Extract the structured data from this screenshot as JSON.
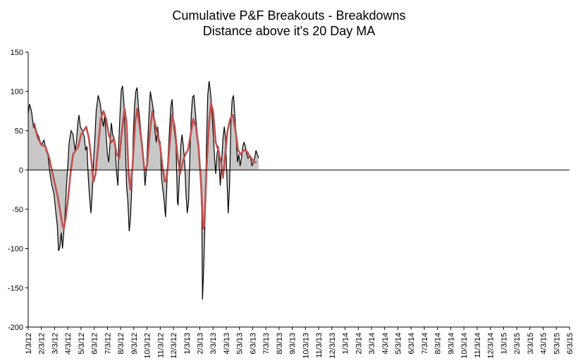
{
  "chart_data": {
    "type": "area",
    "title": "Cumulative P&F Breakouts - Breakdowns",
    "subtitle": "Distance above it's 20 Day MA",
    "xlabel": "",
    "ylabel": "",
    "ylim": [
      -200,
      150
    ],
    "y_ticks": [
      150,
      100,
      50,
      0,
      -50,
      -100,
      -150,
      -200
    ],
    "x_tick_labels": [
      "1/3/12",
      "2/3/12",
      "3/3/12",
      "4/3/12",
      "5/3/12",
      "6/3/12",
      "7/3/12",
      "8/3/12",
      "9/3/12",
      "10/3/12",
      "11/3/12",
      "12/3/12",
      "1/3/13",
      "2/3/13",
      "3/3/13",
      "4/3/13",
      "5/3/13",
      "6/3/13",
      "7/3/13",
      "8/3/13",
      "9/3/13",
      "10/3/13",
      "11/3/13",
      "12/3/13",
      "1/3/14",
      "2/3/14",
      "3/3/14",
      "4/3/14",
      "5/3/14",
      "6/3/14",
      "7/3/14",
      "8/3/14",
      "9/3/14",
      "10/3/14",
      "11/3/14",
      "12/3/14",
      "1/3/15",
      "2/3/15",
      "3/3/15",
      "4/3/15",
      "5/3/15",
      "6/3/15"
    ],
    "grid": false,
    "legend": "none",
    "series": [
      {
        "color": "#000000",
        "fill": "#c8c8c8",
        "style": "area",
        "points": [
          [
            0.0,
            72
          ],
          [
            0.1,
            84
          ],
          [
            0.25,
            75
          ],
          [
            0.4,
            55
          ],
          [
            0.6,
            50
          ],
          [
            0.8,
            42
          ],
          [
            1.0,
            32
          ],
          [
            1.2,
            38
          ],
          [
            1.35,
            25
          ],
          [
            1.5,
            18
          ],
          [
            1.65,
            -5
          ],
          [
            1.8,
            -20
          ],
          [
            1.95,
            -30
          ],
          [
            2.1,
            -55
          ],
          [
            2.2,
            -70
          ],
          [
            2.3,
            -103
          ],
          [
            2.4,
            -98
          ],
          [
            2.5,
            -80
          ],
          [
            2.6,
            -100
          ],
          [
            2.7,
            -78
          ],
          [
            2.8,
            -55
          ],
          [
            2.9,
            -20
          ],
          [
            3.0,
            5
          ],
          [
            3.1,
            35
          ],
          [
            3.25,
            50
          ],
          [
            3.4,
            45
          ],
          [
            3.55,
            25
          ],
          [
            3.65,
            35
          ],
          [
            3.75,
            58
          ],
          [
            3.85,
            70
          ],
          [
            3.95,
            55
          ],
          [
            4.1,
            50
          ],
          [
            4.25,
            42
          ],
          [
            4.35,
            25
          ],
          [
            4.45,
            30
          ],
          [
            4.55,
            -10
          ],
          [
            4.65,
            -35
          ],
          [
            4.75,
            -55
          ],
          [
            4.85,
            -30
          ],
          [
            4.95,
            10
          ],
          [
            5.05,
            40
          ],
          [
            5.15,
            75
          ],
          [
            5.3,
            95
          ],
          [
            5.45,
            85
          ],
          [
            5.6,
            65
          ],
          [
            5.7,
            55
          ],
          [
            5.8,
            70
          ],
          [
            5.9,
            45
          ],
          [
            6.0,
            20
          ],
          [
            6.1,
            10
          ],
          [
            6.2,
            35
          ],
          [
            6.3,
            60
          ],
          [
            6.4,
            45
          ],
          [
            6.5,
            40
          ],
          [
            6.6,
            25
          ],
          [
            6.7,
            -5
          ],
          [
            6.8,
            -20
          ],
          [
            6.85,
            30
          ],
          [
            6.95,
            70
          ],
          [
            7.05,
            102
          ],
          [
            7.15,
            107
          ],
          [
            7.25,
            85
          ],
          [
            7.35,
            40
          ],
          [
            7.45,
            -20
          ],
          [
            7.55,
            -40
          ],
          [
            7.65,
            -78
          ],
          [
            7.75,
            -60
          ],
          [
            7.85,
            -20
          ],
          [
            7.95,
            40
          ],
          [
            8.05,
            80
          ],
          [
            8.15,
            100
          ],
          [
            8.25,
            105
          ],
          [
            8.35,
            80
          ],
          [
            8.5,
            55
          ],
          [
            8.65,
            30
          ],
          [
            8.75,
            10
          ],
          [
            8.85,
            -20
          ],
          [
            8.95,
            0
          ],
          [
            9.05,
            35
          ],
          [
            9.15,
            70
          ],
          [
            9.25,
            100
          ],
          [
            9.35,
            90
          ],
          [
            9.5,
            75
          ],
          [
            9.6,
            50
          ],
          [
            9.7,
            35
          ],
          [
            9.8,
            55
          ],
          [
            9.9,
            40
          ],
          [
            10.0,
            35
          ],
          [
            10.1,
            -10
          ],
          [
            10.2,
            -25
          ],
          [
            10.3,
            -40
          ],
          [
            10.4,
            -60
          ],
          [
            10.5,
            -20
          ],
          [
            10.6,
            20
          ],
          [
            10.7,
            50
          ],
          [
            10.8,
            80
          ],
          [
            10.9,
            90
          ],
          [
            11.0,
            60
          ],
          [
            11.1,
            45
          ],
          [
            11.2,
            30
          ],
          [
            11.3,
            -40
          ],
          [
            11.35,
            -45
          ],
          [
            11.45,
            -10
          ],
          [
            11.55,
            30
          ],
          [
            11.65,
            45
          ],
          [
            11.75,
            30
          ],
          [
            11.85,
            10
          ],
          [
            11.95,
            -30
          ],
          [
            12.05,
            -55
          ],
          [
            12.15,
            -40
          ],
          [
            12.25,
            20
          ],
          [
            12.35,
            70
          ],
          [
            12.45,
            93
          ],
          [
            12.55,
            95
          ],
          [
            12.65,
            75
          ],
          [
            12.75,
            55
          ],
          [
            12.85,
            40
          ],
          [
            12.95,
            20
          ],
          [
            13.05,
            -10
          ],
          [
            13.15,
            -55
          ],
          [
            13.2,
            -165
          ],
          [
            13.3,
            -120
          ],
          [
            13.4,
            -60
          ],
          [
            13.5,
            30
          ],
          [
            13.6,
            95
          ],
          [
            13.7,
            113
          ],
          [
            13.8,
            100
          ],
          [
            13.9,
            80
          ],
          [
            14.0,
            50
          ],
          [
            14.1,
            20
          ],
          [
            14.2,
            -5
          ],
          [
            14.3,
            20
          ],
          [
            14.4,
            30
          ],
          [
            14.5,
            -5
          ],
          [
            14.55,
            -20
          ],
          [
            14.65,
            10
          ],
          [
            14.75,
            40
          ],
          [
            14.85,
            55
          ],
          [
            14.95,
            40
          ],
          [
            15.05,
            -10
          ],
          [
            15.15,
            -55
          ],
          [
            15.25,
            -20
          ],
          [
            15.35,
            60
          ],
          [
            15.45,
            90
          ],
          [
            15.55,
            95
          ],
          [
            15.65,
            70
          ],
          [
            15.75,
            40
          ],
          [
            15.85,
            10
          ],
          [
            15.95,
            20
          ],
          [
            16.05,
            5
          ],
          [
            16.15,
            15
          ],
          [
            16.25,
            30
          ],
          [
            16.35,
            35
          ],
          [
            16.45,
            30
          ],
          [
            16.55,
            20
          ],
          [
            16.65,
            15
          ],
          [
            16.75,
            18
          ],
          [
            16.85,
            15
          ],
          [
            16.95,
            5
          ],
          [
            17.05,
            10
          ],
          [
            17.15,
            15
          ],
          [
            17.25,
            25
          ],
          [
            17.35,
            20
          ],
          [
            17.45,
            15
          ]
        ]
      },
      {
        "color": "#c0504d",
        "style": "line",
        "points": [
          [
            0.45,
            60
          ],
          [
            0.7,
            42
          ],
          [
            1.0,
            32
          ],
          [
            1.3,
            30
          ],
          [
            1.6,
            15
          ],
          [
            1.85,
            -5
          ],
          [
            2.05,
            -20
          ],
          [
            2.25,
            -35
          ],
          [
            2.45,
            -55
          ],
          [
            2.6,
            -70
          ],
          [
            2.7,
            -75
          ],
          [
            2.85,
            -60
          ],
          [
            3.0,
            -40
          ],
          [
            3.2,
            -5
          ],
          [
            3.4,
            20
          ],
          [
            3.6,
            25
          ],
          [
            3.8,
            30
          ],
          [
            4.0,
            45
          ],
          [
            4.2,
            50
          ],
          [
            4.4,
            55
          ],
          [
            4.6,
            40
          ],
          [
            4.8,
            10
          ],
          [
            4.95,
            -15
          ],
          [
            5.1,
            -5
          ],
          [
            5.3,
            30
          ],
          [
            5.5,
            65
          ],
          [
            5.7,
            75
          ],
          [
            5.9,
            65
          ],
          [
            6.1,
            45
          ],
          [
            6.3,
            35
          ],
          [
            6.5,
            40
          ],
          [
            6.7,
            20
          ],
          [
            6.9,
            15
          ],
          [
            7.1,
            50
          ],
          [
            7.3,
            78
          ],
          [
            7.45,
            60
          ],
          [
            7.6,
            -5
          ],
          [
            7.75,
            -25
          ],
          [
            7.9,
            5
          ],
          [
            8.1,
            60
          ],
          [
            8.25,
            78
          ],
          [
            8.4,
            60
          ],
          [
            8.6,
            35
          ],
          [
            8.8,
            0
          ],
          [
            9.0,
            5
          ],
          [
            9.2,
            45
          ],
          [
            9.4,
            75
          ],
          [
            9.6,
            60
          ],
          [
            9.8,
            45
          ],
          [
            10.0,
            30
          ],
          [
            10.2,
            0
          ],
          [
            10.35,
            -15
          ],
          [
            10.5,
            -10
          ],
          [
            10.7,
            30
          ],
          [
            10.9,
            70
          ],
          [
            11.1,
            55
          ],
          [
            11.3,
            20
          ],
          [
            11.5,
            -5
          ],
          [
            11.7,
            10
          ],
          [
            11.9,
            20
          ],
          [
            12.1,
            25
          ],
          [
            12.3,
            45
          ],
          [
            12.5,
            65
          ],
          [
            12.7,
            55
          ],
          [
            12.9,
            30
          ],
          [
            13.1,
            -20
          ],
          [
            13.25,
            -75
          ],
          [
            13.35,
            -70
          ],
          [
            13.5,
            0
          ],
          [
            13.7,
            60
          ],
          [
            13.85,
            85
          ],
          [
            14.0,
            75
          ],
          [
            14.2,
            35
          ],
          [
            14.4,
            25
          ],
          [
            14.6,
            10
          ],
          [
            14.75,
            -10
          ],
          [
            14.9,
            15
          ],
          [
            15.1,
            50
          ],
          [
            15.3,
            65
          ],
          [
            15.5,
            70
          ],
          [
            15.7,
            50
          ],
          [
            15.9,
            25
          ],
          [
            16.1,
            20
          ],
          [
            16.3,
            25
          ],
          [
            16.5,
            25
          ],
          [
            16.7,
            20
          ],
          [
            16.9,
            15
          ],
          [
            17.1,
            10
          ],
          [
            17.3,
            10
          ]
        ]
      }
    ]
  }
}
